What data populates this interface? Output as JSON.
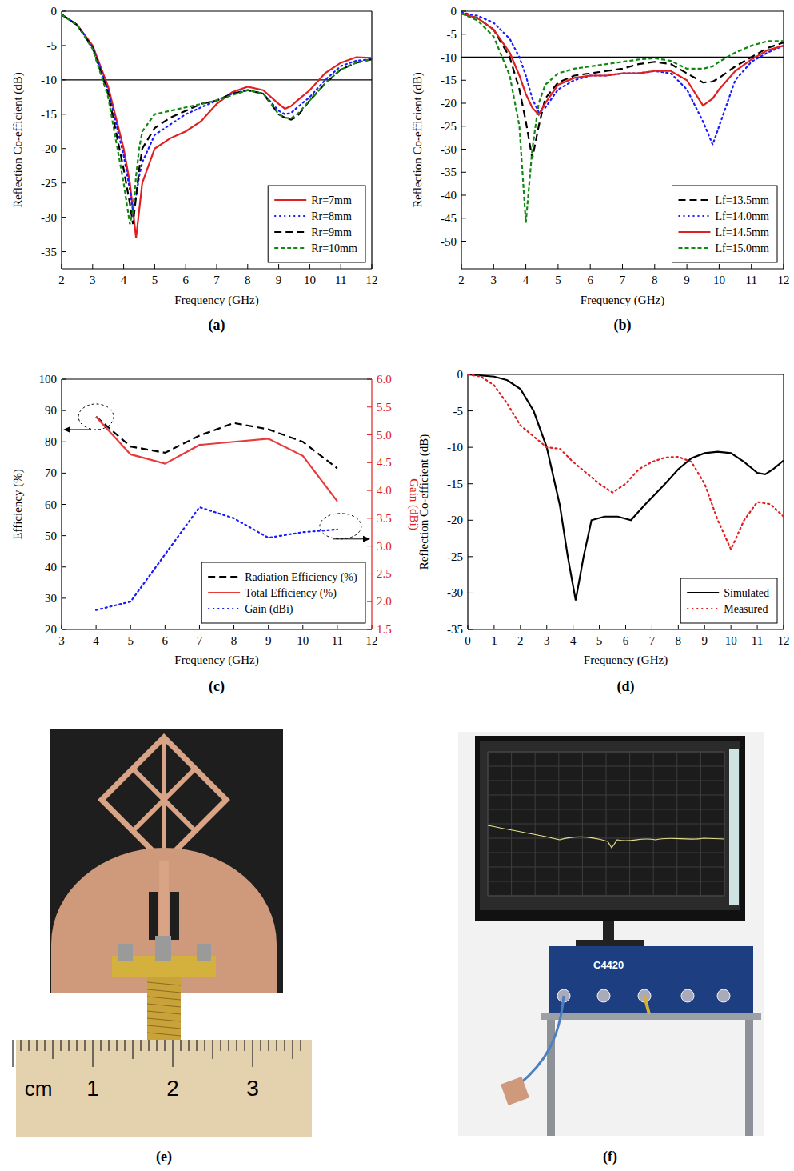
{
  "chart_data": [
    {
      "type": "line",
      "title": "(a)",
      "xlabel": "Frequency (GHz)",
      "ylabel": "Reflection Co-efficient (dB)",
      "x": [
        2,
        2.5,
        3,
        3.5,
        4,
        4.2,
        4.3,
        4.4,
        4.5,
        4.6,
        5,
        5.5,
        6,
        6.5,
        7,
        7.5,
        8,
        8.5,
        9,
        9.2,
        9.4,
        9.6,
        10,
        10.5,
        11,
        11.5,
        12
      ],
      "xlim": [
        2,
        12
      ],
      "xticks": [
        2,
        3,
        4,
        5,
        6,
        7,
        8,
        9,
        10,
        11,
        12
      ],
      "ylim": [
        -37.5,
        0
      ],
      "yticks": [
        0,
        -5,
        -10,
        -15,
        -20,
        -25,
        -30,
        -35
      ],
      "threshold": -10,
      "legend": "lower right",
      "series": [
        {
          "name": "Rr=7mm",
          "color": "#e02020",
          "line_style": "solid",
          "values": [
            -0.5,
            -2,
            -5,
            -11,
            -20,
            -25,
            -29,
            -33,
            -29,
            -25,
            -20,
            -18.5,
            -17.5,
            -16,
            -13.5,
            -11.8,
            -11,
            -11.5,
            -13.5,
            -14.2,
            -13.8,
            -13,
            -11.5,
            -9,
            -7.5,
            -6.7,
            -6.8
          ]
        },
        {
          "name": "Rr=8mm",
          "color": "#1a1aff",
          "line_style": "dotted",
          "values": [
            -0.5,
            -2,
            -5.2,
            -11.5,
            -21,
            -26,
            -29,
            -27,
            -24,
            -22,
            -18,
            -16.5,
            -15,
            -14,
            -13,
            -12,
            -11.5,
            -12,
            -14.5,
            -15,
            -14.8,
            -14,
            -12.5,
            -10,
            -8,
            -7.2,
            -7
          ]
        },
        {
          "name": "Rr=9mm",
          "color": "#000000",
          "line_style": "dashed",
          "values": [
            -0.5,
            -2,
            -5.3,
            -12,
            -23,
            -28,
            -31,
            -27,
            -23,
            -20,
            -17,
            -15.5,
            -14.5,
            -13.5,
            -13,
            -12,
            -11.5,
            -12,
            -15,
            -15.5,
            -15.8,
            -15.3,
            -13,
            -10.5,
            -8.5,
            -7.5,
            -7
          ]
        },
        {
          "name": "Rr=10mm",
          "color": "#118811",
          "line_style": "short-dashed",
          "values": [
            -0.5,
            -2,
            -5.5,
            -12.5,
            -25,
            -31,
            -29,
            -24,
            -20,
            -17.5,
            -15,
            -14.5,
            -14,
            -13.5,
            -13,
            -12.2,
            -11.5,
            -12,
            -15,
            -15.5,
            -15.6,
            -15,
            -13,
            -10.5,
            -8.5,
            -7.5,
            -7
          ]
        }
      ]
    },
    {
      "type": "line",
      "title": "(b)",
      "xlabel": "Frequency (GHz)",
      "ylabel": "Reflection Co-efficient (dB)",
      "x": [
        2,
        2.5,
        3,
        3.5,
        3.8,
        4,
        4.2,
        4.4,
        4.6,
        5,
        5.5,
        6,
        6.5,
        7,
        7.5,
        8,
        8.5,
        9,
        9.5,
        9.8,
        10,
        10.5,
        11,
        11.5,
        12
      ],
      "xlim": [
        2,
        12
      ],
      "xticks": [
        2,
        3,
        4,
        5,
        6,
        7,
        8,
        9,
        10,
        11,
        12
      ],
      "ylim": [
        -56,
        0
      ],
      "yticks": [
        0,
        -5,
        -10,
        -15,
        -20,
        -25,
        -30,
        -35,
        -40,
        -45,
        -50
      ],
      "threshold": -10,
      "legend": "lower right",
      "series": [
        {
          "name": "Lf=13.5mm",
          "color": "#000000",
          "line_style": "dashed",
          "values": [
            -0.5,
            -1.5,
            -4,
            -10,
            -17,
            -24,
            -32,
            -25,
            -19,
            -15.5,
            -14,
            -13.5,
            -13,
            -12.5,
            -11.5,
            -11,
            -11.5,
            -13.5,
            -15.5,
            -15.3,
            -14.5,
            -12,
            -10,
            -8,
            -6.8
          ]
        },
        {
          "name": "Lf=14.0mm",
          "color": "#1a1aff",
          "line_style": "dotted",
          "values": [
            -0.3,
            -1,
            -2.5,
            -6,
            -10,
            -14,
            -19,
            -22,
            -21,
            -17,
            -15,
            -14,
            -14,
            -13.5,
            -13.5,
            -13,
            -13.5,
            -17,
            -24,
            -29,
            -25,
            -15,
            -11,
            -9,
            -7.5
          ]
        },
        {
          "name": "Lf=14.5mm",
          "color": "#e02020",
          "line_style": "solid",
          "values": [
            -0.5,
            -1.5,
            -4,
            -9,
            -14,
            -18,
            -21,
            -22.5,
            -20,
            -16,
            -14.5,
            -14,
            -14,
            -13.5,
            -13.5,
            -13,
            -13,
            -15,
            -20.5,
            -19,
            -17,
            -13,
            -10.5,
            -8.5,
            -7.5
          ]
        },
        {
          "name": "Lf=15.0mm",
          "color": "#118811",
          "line_style": "short-dashed",
          "values": [
            -0.5,
            -2,
            -5.5,
            -14,
            -25,
            -46,
            -30,
            -20,
            -16,
            -13.5,
            -12.5,
            -12,
            -11.5,
            -11,
            -10.5,
            -10.2,
            -10.8,
            -12.5,
            -12.5,
            -12,
            -11,
            -9,
            -7.5,
            -6.5,
            -6.5
          ]
        }
      ]
    },
    {
      "type": "line",
      "title": "(c)",
      "xlabel": "Frequency (GHz)",
      "ylabel": "Efficiency (%)",
      "y2label": "Gain (dBi)",
      "x": [
        4,
        5,
        6,
        7,
        8,
        9,
        10,
        11
      ],
      "xlim": [
        3,
        12
      ],
      "xticks": [
        3,
        4,
        5,
        6,
        7,
        8,
        9,
        10,
        11,
        12
      ],
      "ylim": [
        20,
        100
      ],
      "yticks": [
        20,
        30,
        40,
        50,
        60,
        70,
        80,
        90,
        100
      ],
      "y2lim": [
        1.5,
        6.0
      ],
      "y2ticks": [
        1.5,
        {
          "value": 2,
          "label": "2.0"
        },
        2.5,
        {
          "value": 3,
          "label": "3.0"
        },
        3.5,
        {
          "value": 4,
          "label": "4.0"
        },
        4.5,
        {
          "value": 5,
          "label": "5.0"
        },
        5.5,
        {
          "value": 6,
          "label": "6.0"
        }
      ],
      "legend": "lower right",
      "series": [
        {
          "name": "Radiation Efficiency (%)",
          "color": "#000000",
          "line_style": "dashed",
          "values": [
            88,
            78.5,
            76.5,
            82,
            86,
            84,
            80,
            71.5
          ]
        },
        {
          "name": "Total Efficiency (%)",
          "color": "#e83a3a",
          "line_style": "solid",
          "values": [
            88,
            76,
            73,
            79,
            80,
            81,
            75.5,
            61
          ]
        },
        {
          "name": "Gain (dBi)",
          "color": "#1a1aff",
          "line_style": "dotted",
          "axis": "y2",
          "values": [
            1.85,
            2.0,
            2.85,
            3.7,
            3.5,
            3.15,
            3.25,
            3.3
          ]
        }
      ]
    },
    {
      "type": "line",
      "title": "(d)",
      "xlabel": "Frequency (GHz)",
      "ylabel": "Reflection Co-efficient (dB)",
      "xlim": [
        0,
        12
      ],
      "xticks": [
        0,
        1,
        2,
        3,
        4,
        5,
        6,
        7,
        8,
        9,
        10,
        11,
        12
      ],
      "ylim": [
        -35,
        0
      ],
      "yticks": [
        0,
        -5,
        -10,
        -15,
        -20,
        -25,
        -30,
        -35
      ],
      "legend": "lower right",
      "series": [
        {
          "name": "Simulated",
          "color": "#000000",
          "line_style": "solid",
          "x": [
            0,
            1,
            1.5,
            2,
            2.5,
            3,
            3.5,
            3.8,
            4.1,
            4.4,
            4.7,
            5.2,
            5.7,
            6.2,
            6.7,
            7.5,
            8,
            8.5,
            9,
            9.5,
            10,
            10.5,
            11,
            11.3,
            11.6,
            12
          ],
          "values": [
            0,
            -0.3,
            -0.8,
            -2,
            -5,
            -10,
            -18,
            -25,
            -31,
            -25,
            -20,
            -19.5,
            -19.5,
            -20,
            -18,
            -15,
            -13,
            -11.5,
            -10.8,
            -10.6,
            -10.8,
            -12,
            -13.5,
            -13.7,
            -13,
            -11.8
          ]
        },
        {
          "name": "Measured",
          "color": "#e02020",
          "line_style": "dotted",
          "x": [
            0,
            0.5,
            1,
            1.5,
            2,
            2.5,
            3,
            3.5,
            4,
            4.5,
            5,
            5.5,
            6,
            6.5,
            7,
            7.5,
            8,
            8.5,
            9,
            9.5,
            10,
            10.5,
            11,
            11.5,
            12
          ],
          "values": [
            0,
            -0.3,
            -1.5,
            -4,
            -7,
            -8.5,
            -10,
            -10.2,
            -12,
            -13.5,
            -15,
            -16.2,
            -15,
            -13,
            -12,
            -11.4,
            -11.3,
            -12,
            -15,
            -20,
            -24,
            -20,
            -17.5,
            -17.8,
            -19.5
          ]
        }
      ]
    }
  ],
  "photos": [
    {
      "label": "(e)",
      "ruler_unit": "cm",
      "ruler_labels": [
        "1",
        "2",
        "3"
      ]
    },
    {
      "label": "(f)",
      "instrument_label": "C4420"
    }
  ]
}
